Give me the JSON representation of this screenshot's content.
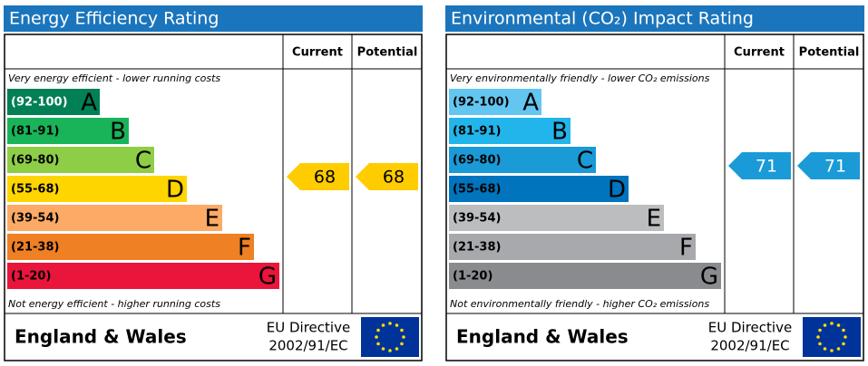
{
  "panels": [
    {
      "title": "Energy Efficiency Rating",
      "columns": [
        "Current",
        "Potential"
      ],
      "top_note": "Very energy efficient - lower running costs",
      "bottom_note": "Not energy efficient - higher running costs",
      "bands": [
        {
          "range": "(92-100)",
          "letter": "A"
        },
        {
          "range": "(81-91)",
          "letter": "B"
        },
        {
          "range": "(69-80)",
          "letter": "C"
        },
        {
          "range": "(55-68)",
          "letter": "D"
        },
        {
          "range": "(39-54)",
          "letter": "E"
        },
        {
          "range": "(21-38)",
          "letter": "F"
        },
        {
          "range": "(1-20)",
          "letter": "G"
        }
      ],
      "current": 68,
      "potential": 68,
      "region": "England & Wales",
      "directive": [
        "EU Directive",
        "2002/91/EC"
      ]
    },
    {
      "title": "Environmental (CO₂) Impact Rating",
      "columns": [
        "Current",
        "Potential"
      ],
      "top_note": "Very environmentally friendly - lower CO₂ emissions",
      "bottom_note": "Not environmentally friendly - higher CO₂ emissions",
      "bands": [
        {
          "range": "(92-100)",
          "letter": "A"
        },
        {
          "range": "(81-91)",
          "letter": "B"
        },
        {
          "range": "(69-80)",
          "letter": "C"
        },
        {
          "range": "(55-68)",
          "letter": "D"
        },
        {
          "range": "(39-54)",
          "letter": "E"
        },
        {
          "range": "(21-38)",
          "letter": "F"
        },
        {
          "range": "(1-20)",
          "letter": "G"
        }
      ],
      "current": 71,
      "potential": 71,
      "region": "England & Wales",
      "directive": [
        "EU Directive",
        "2002/91/EC"
      ]
    }
  ]
}
